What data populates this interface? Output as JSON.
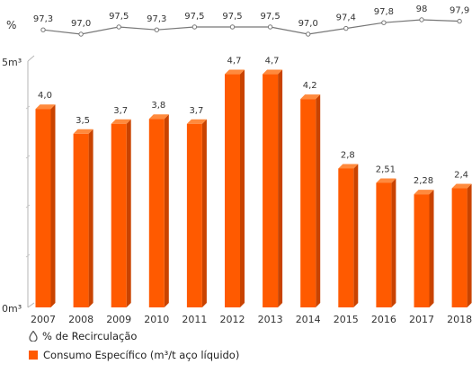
{
  "chart_data": {
    "type": "bar",
    "categories": [
      "2007",
      "2008",
      "2009",
      "2010",
      "2011",
      "2012",
      "2013",
      "2014",
      "2015",
      "2016",
      "2017",
      "2018"
    ],
    "bar_series": {
      "name": "Consumo Específico (m³/t aço líquido)",
      "values": [
        4.0,
        3.5,
        3.7,
        3.8,
        3.7,
        4.7,
        4.7,
        4.2,
        2.8,
        2.51,
        2.28,
        2.4
      ],
      "labels": [
        "4,0",
        "3,5",
        "3,7",
        "3,8",
        "3,7",
        "4,7",
        "4,7",
        "4,2",
        "2,8",
        "2,51",
        "2,28",
        "2,4"
      ],
      "color": "#ff5a00",
      "side_color": "#c94300",
      "top_color": "#ff8a3d"
    },
    "line_series": {
      "name": "% de Recirculação",
      "values": [
        97.3,
        97.0,
        97.5,
        97.3,
        97.5,
        97.5,
        97.5,
        97.0,
        97.4,
        97.8,
        98.0,
        97.9
      ],
      "labels": [
        "97,3",
        "97,0",
        "97,5",
        "97,3",
        "97,5",
        "97,5",
        "97,5",
        "97,0",
        "97,4",
        "97,8",
        "98",
        "97,9"
      ],
      "color": "#777777"
    },
    "y_axis": {
      "min_label": "0m³",
      "max_label": "5m³",
      "ylim": [
        0,
        5
      ]
    },
    "line_axis_label": "%",
    "legend_position": "bottom-left"
  },
  "legend": {
    "line_label": "% de Recirculação",
    "bar_label": "Consumo Específico (m³/t aço líquido)"
  }
}
